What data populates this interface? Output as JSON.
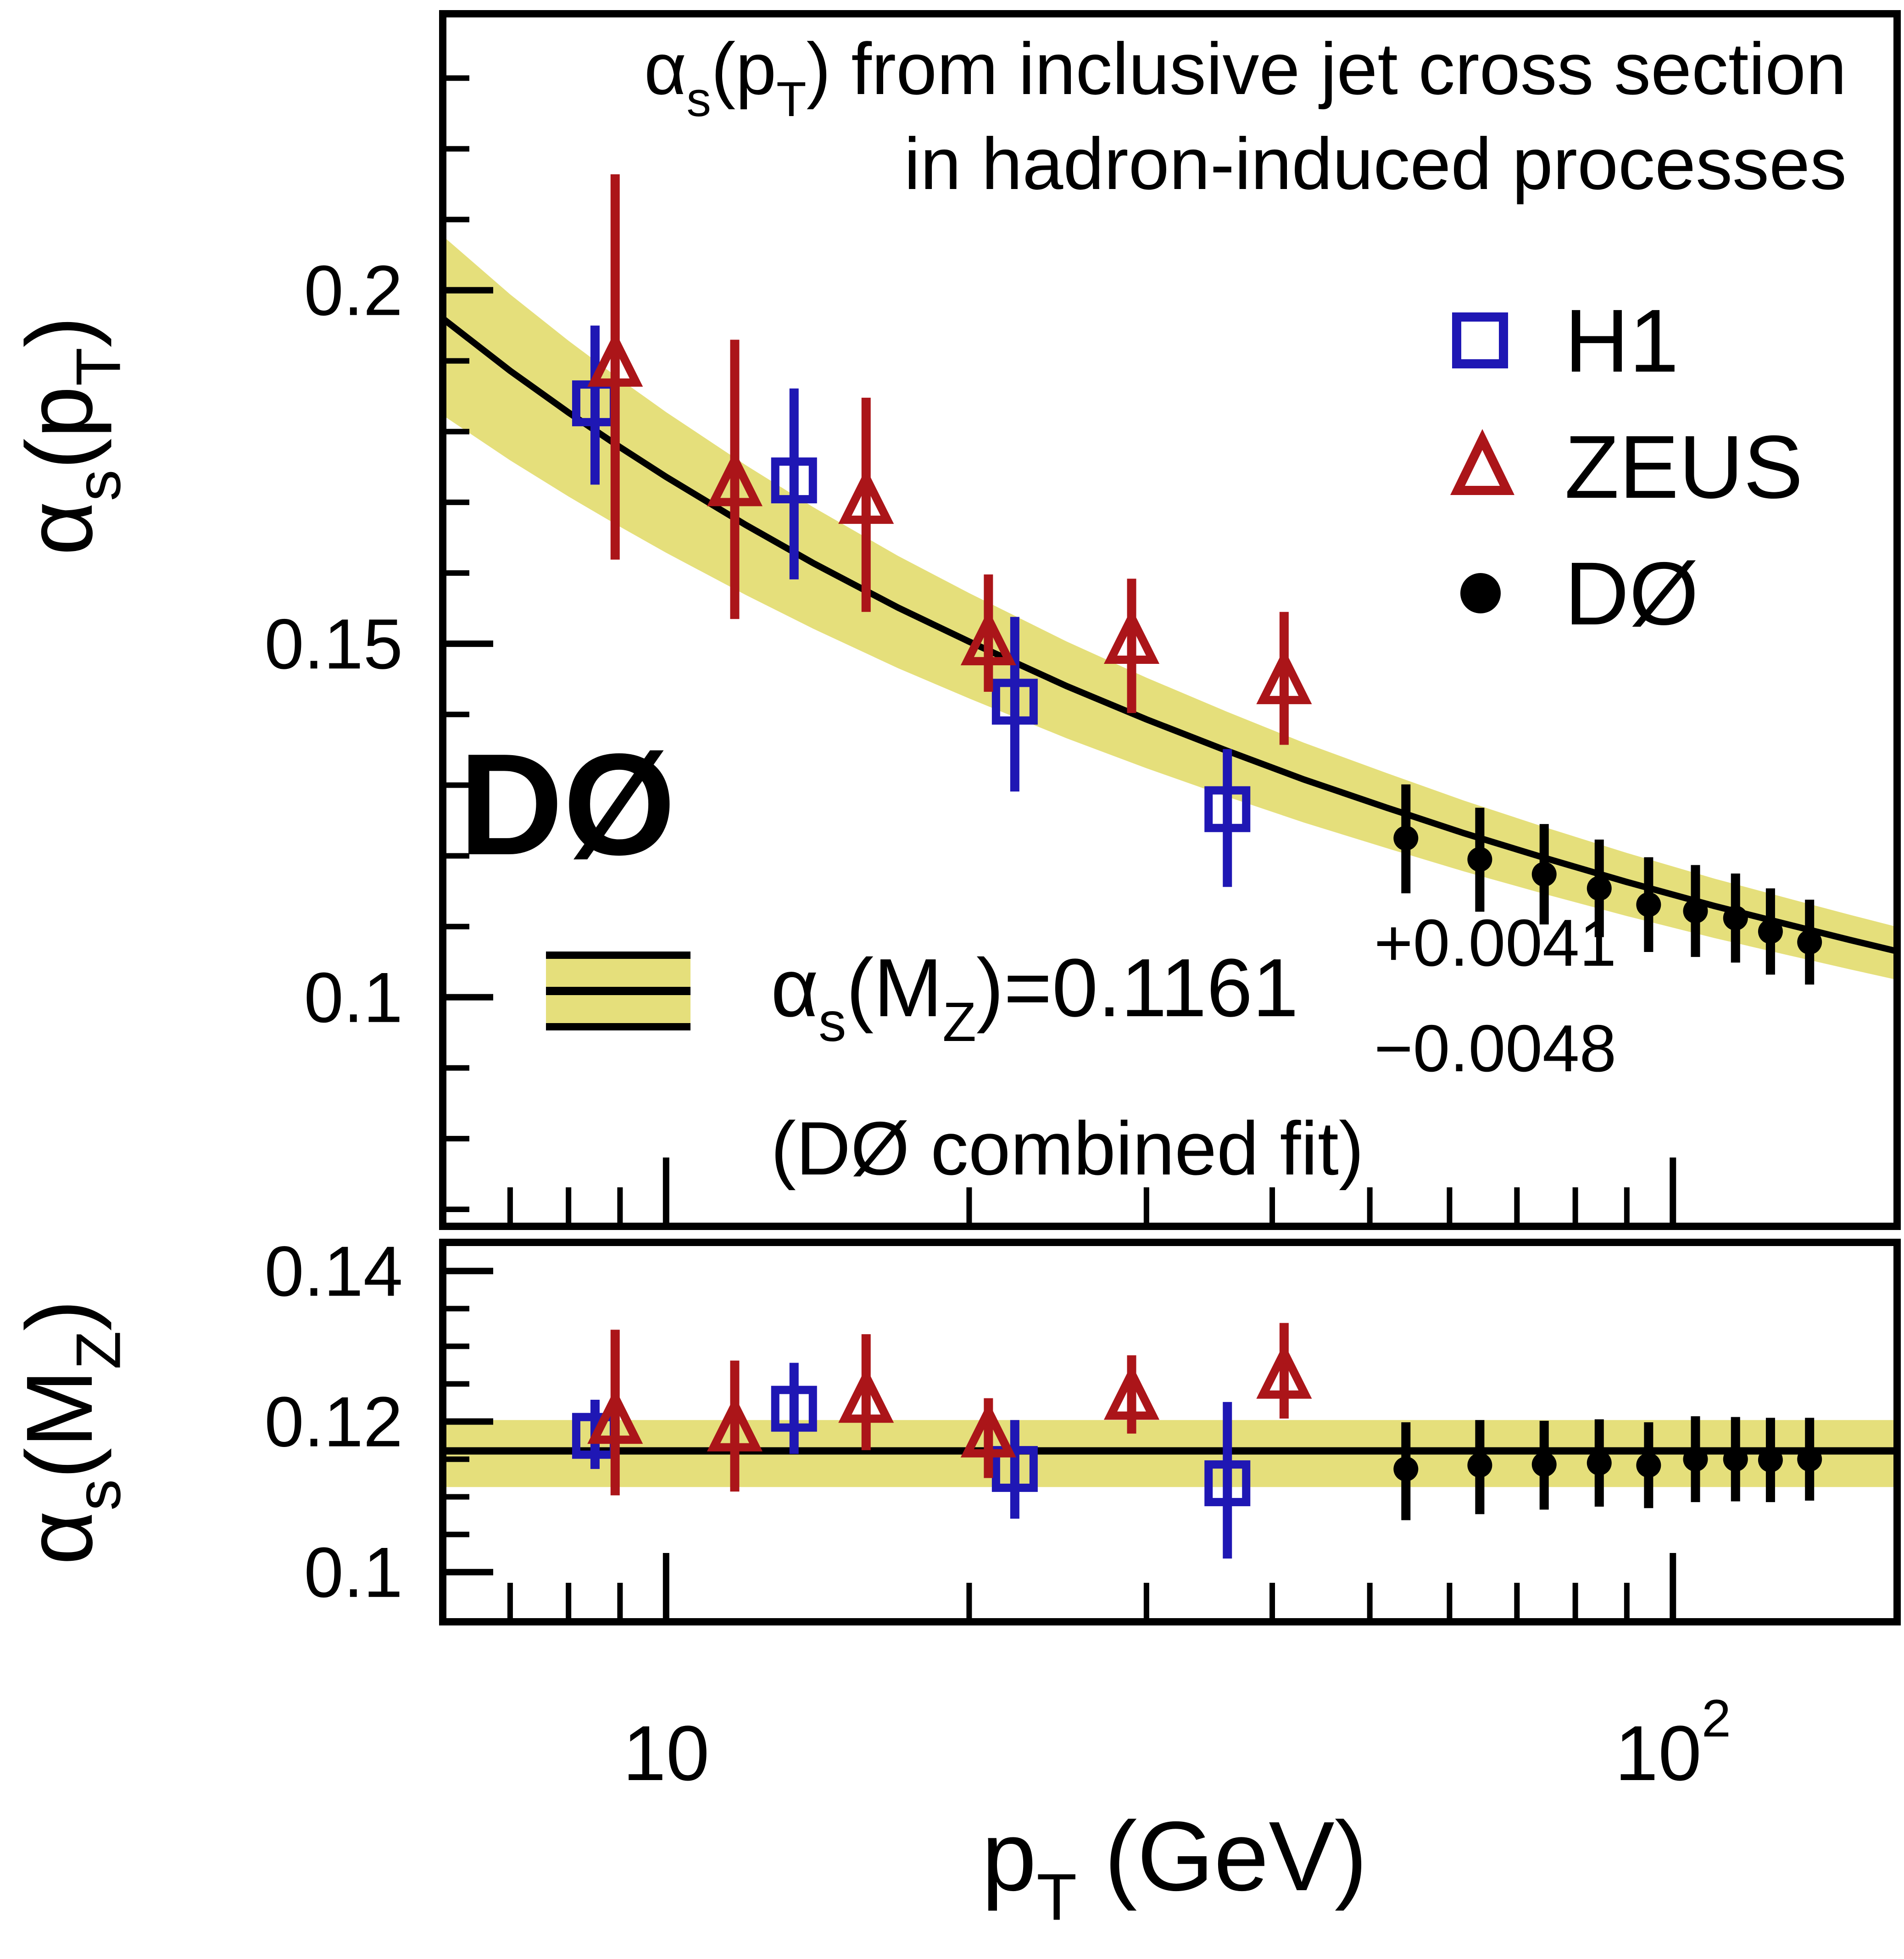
{
  "figure": {
    "watermark": "DØ",
    "title_lines": [
      [
        {
          "t": "α"
        },
        {
          "t": "s",
          "s": "sub"
        },
        {
          "t": "(p"
        },
        {
          "t": "T",
          "s": "sub"
        },
        {
          "t": ") from inclusive jet cross section"
        }
      ],
      [
        {
          "t": "in hadron-induced processes"
        }
      ]
    ],
    "legend": [
      {
        "label": "H1",
        "marker": "open-square",
        "color": "#1f17b4"
      },
      {
        "label": "ZEUS",
        "marker": "open-triangle",
        "color": "#ab1519"
      },
      {
        "label": "DØ",
        "marker": "filled-circle",
        "color": "#000000"
      }
    ],
    "annotation": {
      "fit_label": [
        {
          "t": "α"
        },
        {
          "t": "s",
          "s": "sub"
        },
        {
          "t": "(M"
        },
        {
          "t": "Z",
          "s": "sub"
        },
        {
          "t": ")=0.1161"
        }
      ],
      "err_up": "+0.0041",
      "err_dn": "−0.0048",
      "caption": "(DØ combined fit)"
    },
    "colors": {
      "band": "#e5df7b",
      "h1_blue": "#1f17b4",
      "zeus_red": "#ab1519",
      "d0_black": "#000000"
    }
  },
  "chart_data": {
    "type": "scatter",
    "x_axis": {
      "label_segments": [
        {
          "t": "p"
        },
        {
          "t": "T",
          "s": "sub"
        },
        {
          "t": " (GeV)"
        }
      ],
      "scale": "log",
      "range": [
        6,
        167
      ],
      "major_ticks": [
        {
          "value": 10,
          "base": "10",
          "exp": ""
        },
        {
          "value": 100,
          "base": "10",
          "exp": "2"
        }
      ],
      "minor_ticks": [
        7,
        8,
        9,
        20,
        30,
        40,
        50,
        60,
        70,
        80,
        90
      ]
    },
    "top_panel": {
      "y_axis": {
        "label_segments": [
          {
            "t": "α"
          },
          {
            "t": "s",
            "s": "sub"
          },
          {
            "t": "(p"
          },
          {
            "t": "T",
            "s": "sub"
          },
          {
            "t": ")"
          }
        ],
        "range": [
          0.0676,
          0.2391
        ],
        "major_ticks": [
          {
            "value": 0.1,
            "label": "0.1"
          },
          {
            "value": 0.15,
            "label": "0.15"
          },
          {
            "value": 0.2,
            "label": "0.2"
          }
        ],
        "minor_tick_start": 0.07,
        "minor_tick_end": 0.23,
        "minor_tick_step": 0.01
      },
      "theory_curve": {
        "points": [
          [
            6,
            0.196
          ],
          [
            7,
            0.1886
          ],
          [
            8,
            0.1827
          ],
          [
            9,
            0.1778
          ],
          [
            10,
            0.1736
          ],
          [
            12,
            0.1668
          ],
          [
            14,
            0.1614
          ],
          [
            17,
            0.1551
          ],
          [
            20,
            0.1503
          ],
          [
            25,
            0.144
          ],
          [
            30,
            0.1393
          ],
          [
            36,
            0.1349
          ],
          [
            43,
            0.1308
          ],
          [
            52,
            0.1268
          ],
          [
            62,
            0.1232
          ],
          [
            75,
            0.1196
          ],
          [
            90,
            0.1163
          ],
          [
            110,
            0.1129
          ],
          [
            130,
            0.1103
          ],
          [
            150,
            0.1081
          ],
          [
            167,
            0.1065
          ]
        ],
        "band_up_coeff": 0.304,
        "band_dn_coeff": 0.356
      },
      "series": [
        {
          "name": "H1",
          "marker": "open-square",
          "color": "#1f17b4",
          "points": [
            {
              "x": 8.5,
              "y": 0.184,
              "eu": 0.011,
              "ed": 0.0115
            },
            {
              "x": 13.4,
              "y": 0.1731,
              "eu": 0.013,
              "ed": 0.014
            },
            {
              "x": 22.2,
              "y": 0.1418,
              "eu": 0.012,
              "ed": 0.0127
            },
            {
              "x": 36.1,
              "y": 0.1266,
              "eu": 0.0085,
              "ed": 0.011
            }
          ]
        },
        {
          "name": "ZEUS",
          "marker": "open-triangle",
          "color": "#ab1519",
          "points": [
            {
              "x": 8.9,
              "y": 0.1894,
              "eu": 0.027,
              "ed": 0.0275
            },
            {
              "x": 11.7,
              "y": 0.1725,
              "eu": 0.0205,
              "ed": 0.019
            },
            {
              "x": 15.8,
              "y": 0.17,
              "eu": 0.0148,
              "ed": 0.0155
            },
            {
              "x": 20.9,
              "y": 0.15,
              "eu": 0.0098,
              "ed": 0.0068
            },
            {
              "x": 29.0,
              "y": 0.1502,
              "eu": 0.009,
              "ed": 0.01
            },
            {
              "x": 41.1,
              "y": 0.1445,
              "eu": 0.01,
              "ed": 0.0088
            }
          ]
        },
        {
          "name": "DØ",
          "marker": "filled-circle",
          "color": "#000000",
          "points": [
            {
              "x": 54.3,
              "y": 0.1225,
              "eu": 0.0076,
              "ed": 0.0078
            },
            {
              "x": 64.3,
              "y": 0.1195,
              "eu": 0.0073,
              "ed": 0.0074
            },
            {
              "x": 74.5,
              "y": 0.1174,
              "eu": 0.0071,
              "ed": 0.0071
            },
            {
              "x": 84.5,
              "y": 0.1154,
              "eu": 0.0069,
              "ed": 0.0069
            },
            {
              "x": 94.6,
              "y": 0.1131,
              "eu": 0.0067,
              "ed": 0.0067
            },
            {
              "x": 105.3,
              "y": 0.1122,
              "eu": 0.0065,
              "ed": 0.0065
            },
            {
              "x": 115.4,
              "y": 0.1112,
              "eu": 0.0063,
              "ed": 0.0063
            },
            {
              "x": 125.0,
              "y": 0.1093,
              "eu": 0.0061,
              "ed": 0.0061
            },
            {
              "x": 136.7,
              "y": 0.1078,
              "eu": 0.006,
              "ed": 0.006
            }
          ]
        }
      ]
    },
    "bottom_panel": {
      "y_axis": {
        "label_segments": [
          {
            "t": "α"
          },
          {
            "t": "s",
            "s": "sub"
          },
          {
            "t": "(M"
          },
          {
            "t": "Z",
            "s": "sub"
          },
          {
            "t": ")"
          }
        ],
        "range": [
          0.0934,
          0.1438
        ],
        "major_ticks": [
          {
            "value": 0.1,
            "label": "0.1"
          },
          {
            "value": 0.12,
            "label": "0.12"
          },
          {
            "value": 0.14,
            "label": "0.14"
          }
        ],
        "minor_tick_start": 0.1,
        "minor_tick_end": 0.1435,
        "minor_tick_step": 0.005
      },
      "fit": {
        "value": 0.1161,
        "band": [
          0.1113,
          0.1202
        ]
      },
      "series": [
        {
          "name": "H1",
          "marker": "open-square",
          "color": "#1f17b4",
          "points": [
            {
              "x": 8.5,
              "y": 0.1181,
              "eu": 0.0048,
              "ed": 0.0044
            },
            {
              "x": 13.4,
              "y": 0.1217,
              "eu": 0.0061,
              "ed": 0.006
            },
            {
              "x": 22.2,
              "y": 0.1137,
              "eu": 0.0065,
              "ed": 0.0066
            },
            {
              "x": 36.1,
              "y": 0.1118,
              "eu": 0.0108,
              "ed": 0.01
            }
          ]
        },
        {
          "name": "ZEUS",
          "marker": "open-triangle",
          "color": "#ab1519",
          "points": [
            {
              "x": 8.9,
              "y": 0.1199,
              "eu": 0.0123,
              "ed": 0.0097
            },
            {
              "x": 11.7,
              "y": 0.1189,
              "eu": 0.0092,
              "ed": 0.0082
            },
            {
              "x": 15.8,
              "y": 0.1227,
              "eu": 0.0089,
              "ed": 0.0065
            },
            {
              "x": 20.9,
              "y": 0.1181,
              "eu": 0.005,
              "ed": 0.0056
            },
            {
              "x": 29.0,
              "y": 0.1231,
              "eu": 0.0057,
              "ed": 0.0047
            },
            {
              "x": 41.1,
              "y": 0.1259,
              "eu": 0.0072,
              "ed": 0.0055
            }
          ]
        },
        {
          "name": "DØ",
          "marker": "filled-circle",
          "color": "#000000",
          "points": [
            {
              "x": 54.3,
              "y": 0.1137,
              "eu": 0.0062,
              "ed": 0.0068
            },
            {
              "x": 64.3,
              "y": 0.1142,
              "eu": 0.006,
              "ed": 0.0065
            },
            {
              "x": 74.5,
              "y": 0.1143,
              "eu": 0.0058,
              "ed": 0.006
            },
            {
              "x": 84.5,
              "y": 0.1145,
              "eu": 0.0058,
              "ed": 0.0058
            },
            {
              "x": 94.6,
              "y": 0.1142,
              "eu": 0.0057,
              "ed": 0.0057
            },
            {
              "x": 105.3,
              "y": 0.115,
              "eu": 0.0057,
              "ed": 0.0057
            },
            {
              "x": 115.4,
              "y": 0.115,
              "eu": 0.0056,
              "ed": 0.0056
            },
            {
              "x": 125.0,
              "y": 0.1149,
              "eu": 0.0056,
              "ed": 0.0056
            },
            {
              "x": 136.7,
              "y": 0.115,
              "eu": 0.0055,
              "ed": 0.0055
            }
          ]
        }
      ]
    }
  }
}
